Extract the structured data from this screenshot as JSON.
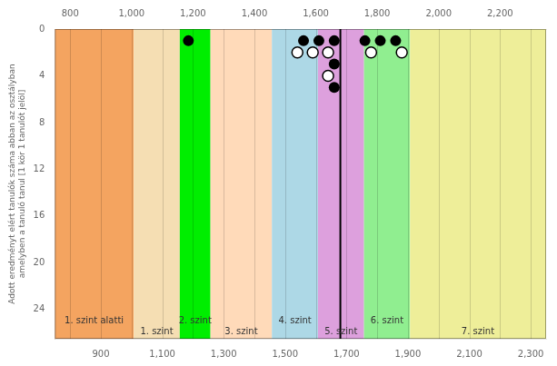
{
  "chart_data": {
    "type": "scatter",
    "ylabel": "Adott eredményt elért tanulók száma abban az osztályban\namelyben a tanuló tanul [1 kör 1 tanulót jelöl]",
    "xlim": [
      750,
      2350
    ],
    "xticks": [
      900,
      1100,
      1300,
      1500,
      1700,
      1900,
      2100,
      2300
    ],
    "x2lim": [
      750,
      2350
    ],
    "x2ticks": [
      800,
      1000,
      1200,
      1400,
      1600,
      1800,
      2000,
      2200
    ],
    "ylim": [
      26.5,
      0
    ],
    "yticks": [
      0,
      4,
      8,
      12,
      16,
      20,
      24
    ],
    "grid": "x",
    "bands": [
      {
        "xmin": 750,
        "xmax": 1007,
        "color": "#F4A460",
        "label": "1. szint alatti",
        "label_x": 878,
        "label_y": 24.6
      },
      {
        "xmin": 1007,
        "xmax": 1157,
        "color": "#F5DEB3",
        "label": "1. szint",
        "label_x": 1082,
        "label_y": 25.5
      },
      {
        "xmin": 1157,
        "xmax": 1257,
        "color": "#00EE00",
        "label": "2. szint",
        "label_x": 1207,
        "label_y": 24.6
      },
      {
        "xmin": 1257,
        "xmax": 1457,
        "color": "#FFDAB9",
        "label": "3. szint",
        "label_x": 1357,
        "label_y": 25.5
      },
      {
        "xmin": 1457,
        "xmax": 1607,
        "color": "#ADD8E6",
        "label": "4. szint",
        "label_x": 1532,
        "label_y": 24.6
      },
      {
        "xmin": 1607,
        "xmax": 1757,
        "color": "#DDA0DD",
        "label": "5. szint",
        "label_x": 1682,
        "label_y": 25.5
      },
      {
        "xmin": 1757,
        "xmax": 1907,
        "color": "#90EE90",
        "label": "6. szint",
        "label_x": 1832,
        "label_y": 24.6
      },
      {
        "xmin": 1907,
        "xmax": 2350,
        "color": "#EEEE99",
        "label": "7. szint",
        "label_x": 2128,
        "label_y": 25.5
      }
    ],
    "vlines": [
      {
        "x": 1680,
        "color": "#000000"
      }
    ],
    "series": [
      {
        "color": "#000000",
        "marker": "circle",
        "x": [
          1185,
          1560,
          1610,
          1660,
          1660,
          1660,
          1760,
          1810,
          1860
        ],
        "values": [
          1,
          1,
          1,
          1,
          3,
          5,
          1,
          1,
          1
        ]
      },
      {
        "color": "#000000",
        "marker": "open_circle",
        "x": [
          1540,
          1590,
          1640,
          1640,
          1780,
          1880
        ],
        "values": [
          2,
          2,
          2,
          4,
          2,
          2
        ]
      }
    ]
  }
}
